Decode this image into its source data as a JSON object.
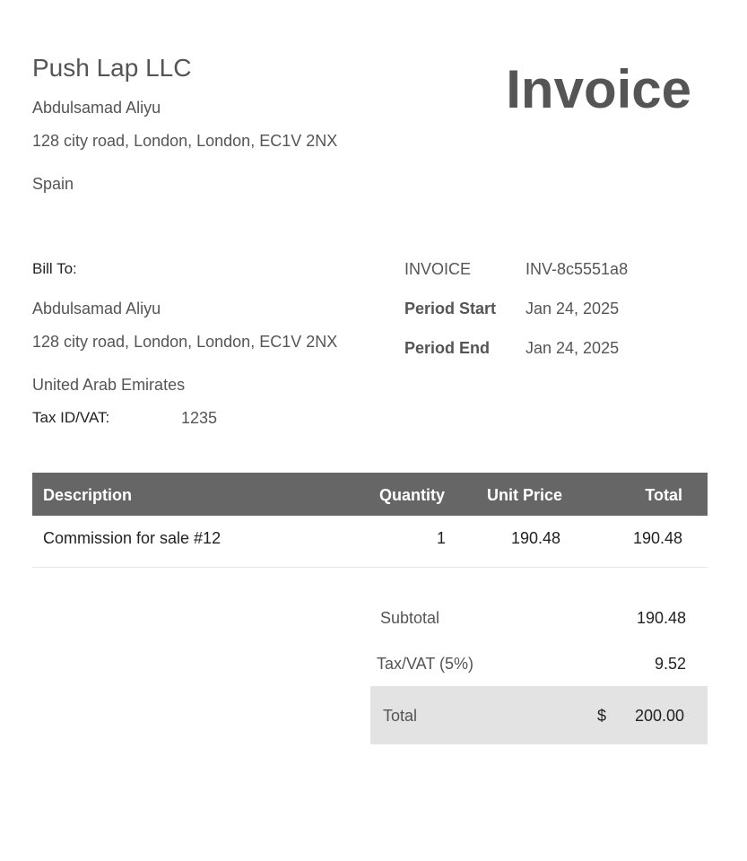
{
  "seller": {
    "company": "Push Lap LLC",
    "name": "Abdulsamad Aliyu",
    "address": "128 city road, London, London, EC1V 2NX",
    "country": "Spain"
  },
  "title": "Invoice",
  "bill_to": {
    "label": "Bill To:",
    "name": "Abdulsamad Aliyu",
    "address": "128 city road, London, London, EC1V 2NX",
    "country": "United Arab Emirates",
    "tax_label": "Tax ID/VAT:",
    "tax_value": "1235"
  },
  "meta": [
    {
      "label": "INVOICE",
      "value": "INV-8c5551a8"
    },
    {
      "label": "Period Start",
      "value": "Jan 24, 2025"
    },
    {
      "label": "Period End",
      "value": "Jan 24, 2025"
    }
  ],
  "table": {
    "headers": [
      "Description",
      "Quantity",
      "Unit Price",
      "Total"
    ],
    "rows": [
      {
        "description": "Commission for sale #12",
        "quantity": "1",
        "unit_price": "190.48",
        "total": "190.48"
      }
    ],
    "header_bg": "#666666"
  },
  "summary": {
    "subtotal_label": "Subtotal",
    "subtotal_value": "190.48",
    "tax_label": "Tax/VAT (5%)",
    "tax_value": "9.52",
    "total_label": "Total",
    "currency": "$",
    "total_value": "200.00"
  }
}
